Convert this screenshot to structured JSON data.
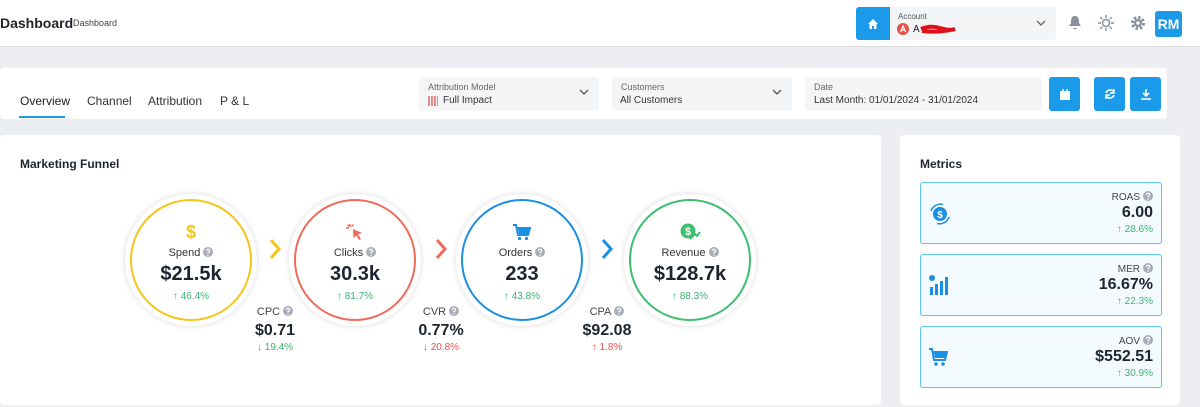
{
  "header": {
    "title": "Dashboard",
    "breadcrumb": "Dashboard",
    "account_label": "Account",
    "account_name": "A",
    "avatar": "RM"
  },
  "tabs": [
    "Overview",
    "Channel",
    "Attribution",
    "P & L"
  ],
  "filters": [
    {
      "label": "Attribution Model",
      "value": "Full Impact"
    },
    {
      "label": "Customers",
      "value": "All Customers"
    },
    {
      "label": "Date",
      "value": "Last Month: 01/01/2024 - 31/01/2024"
    }
  ],
  "funnel": {
    "title": "Marketing Funnel",
    "stages": [
      {
        "label": "Spend",
        "value": "$21.5k",
        "change": "↑ 46.4%",
        "color": "#f5c518",
        "change_color": "#3cb371"
      },
      {
        "label": "Clicks",
        "value": "30.3k",
        "change": "↑ 81.7%",
        "color": "#ee6b5b",
        "change_color": "#3cb371"
      },
      {
        "label": "Orders",
        "value": "233",
        "change": "↑ 43.8%",
        "color": "#1a8fe3",
        "change_color": "#3cb371"
      },
      {
        "label": "Revenue",
        "value": "$128.7k",
        "change": "↑ 88.3%",
        "color": "#3cbf6e",
        "change_color": "#3cb371"
      }
    ],
    "ratios": [
      {
        "label": "CPC",
        "value": "$0.71",
        "change": "↓ 19.4%",
        "change_color": "#3cb371"
      },
      {
        "label": "CVR",
        "value": "0.77%",
        "change": "↓ 20.8%",
        "change_color": "#e5534b"
      },
      {
        "label": "CPA",
        "value": "$92.08",
        "change": "↑ 1.8%",
        "change_color": "#e5534b"
      }
    ]
  },
  "metrics": {
    "title": "Metrics",
    "items": [
      {
        "label": "ROAS",
        "value": "6.00",
        "change": "↑ 28.6%"
      },
      {
        "label": "MER",
        "value": "16.67%",
        "change": "↑ 22.3%"
      },
      {
        "label": "AOV",
        "value": "$552.51",
        "change": "↑ 30.9%"
      }
    ]
  }
}
